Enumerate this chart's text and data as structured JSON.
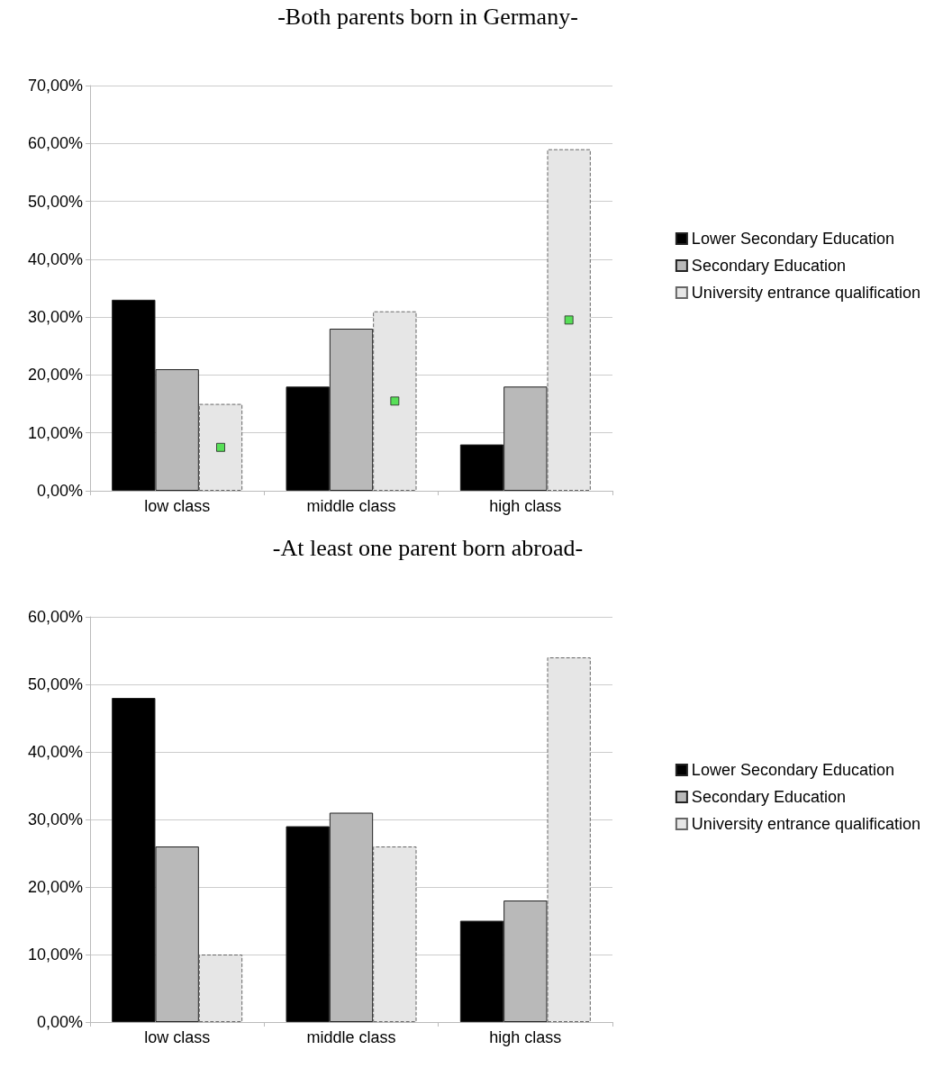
{
  "chart_data": [
    {
      "type": "bar",
      "title": "-Both parents born in Germany-",
      "categories": [
        "low class",
        "middle class",
        "high class"
      ],
      "series": [
        {
          "name": "Lower Secondary Education",
          "color": "#000000",
          "values": [
            33,
            18,
            8
          ]
        },
        {
          "name": "Secondary Education",
          "color": "#b9b9b9",
          "values": [
            21,
            28,
            18
          ]
        },
        {
          "name": "University entrance qualification",
          "color": "#e6e6e6",
          "values": [
            15,
            31,
            59
          ]
        },
        {
          "type": "scatter",
          "color": "#33dd33",
          "marker": "square",
          "x": [
            "low class",
            "middle class",
            "high class"
          ],
          "values": [
            7.5,
            15.5,
            29.5
          ]
        }
      ],
      "ylim": [
        0,
        70
      ],
      "yticks": [
        {
          "value": 0,
          "label": "0,00%"
        },
        {
          "value": 10,
          "label": "10,00%"
        },
        {
          "value": 20,
          "label": "20,00%"
        },
        {
          "value": 30,
          "label": "30,00%"
        },
        {
          "value": 40,
          "label": "40,00%"
        },
        {
          "value": 50,
          "label": "50,00%"
        },
        {
          "value": 60,
          "label": "60,00%"
        },
        {
          "value": 70,
          "label": "70,00%"
        }
      ],
      "grid": "y",
      "legend": "right"
    },
    {
      "type": "bar",
      "title": "-At least one parent born abroad-",
      "categories": [
        "low class",
        "middle class",
        "high class"
      ],
      "series": [
        {
          "name": "Lower Secondary Education",
          "color": "#000000",
          "values": [
            48,
            29,
            15
          ]
        },
        {
          "name": "Secondary Education",
          "color": "#b9b9b9",
          "values": [
            26,
            31,
            18
          ]
        },
        {
          "name": "University entrance qualification",
          "color": "#e6e6e6",
          "values": [
            10,
            26,
            54
          ]
        }
      ],
      "ylim": [
        0,
        60
      ],
      "yticks": [
        {
          "value": 0,
          "label": "0,00%"
        },
        {
          "value": 10,
          "label": "10,00%"
        },
        {
          "value": 20,
          "label": "20,00%"
        },
        {
          "value": 30,
          "label": "30,00%"
        },
        {
          "value": 40,
          "label": "40,00%"
        },
        {
          "value": 50,
          "label": "50,00%"
        },
        {
          "value": 60,
          "label": "60,00%"
        }
      ],
      "grid": "y",
      "legend": "right"
    }
  ]
}
